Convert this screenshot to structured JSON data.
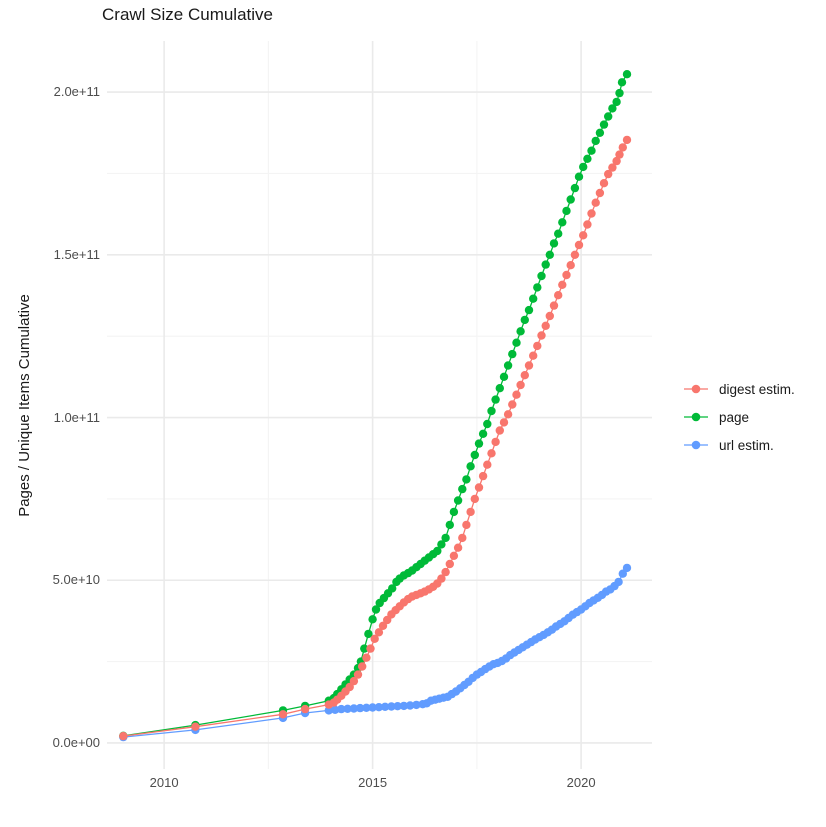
{
  "title": "Crawl Size Cumulative",
  "y_axis_title": "Pages / Unique Items Cumulative",
  "colors": {
    "digest_estim": "#F8766D",
    "page": "#00BA38",
    "url_estim": "#619CFF",
    "grid_major": "#EAEAEA",
    "grid_minor": "#F4F4F4",
    "tick_label": "#4D4D4D",
    "text": "#1A1A1A",
    "background": "#FFFFFF"
  },
  "legend": {
    "items": [
      {
        "label": "digest estim.",
        "color": "#F8766D"
      },
      {
        "label": "page",
        "color": "#00BA38"
      },
      {
        "label": "url estim.",
        "color": "#619CFF"
      }
    ]
  },
  "chart_data": {
    "type": "line",
    "title": "Crawl Size Cumulative",
    "xlabel": "",
    "ylabel": "Pages / Unique Items Cumulative",
    "grid": true,
    "legend_position": "right",
    "xlim": [
      2008.63,
      2021.7
    ],
    "ylim": [
      -8000000000.0,
      215700000000.0
    ],
    "x_ticks": [
      {
        "value": 2010,
        "label": "2010"
      },
      {
        "value": 2015,
        "label": "2015"
      },
      {
        "value": 2020,
        "label": "2020"
      }
    ],
    "x_minor_ticks": [
      2012.5,
      2017.5
    ],
    "y_ticks": [
      {
        "value": 0,
        "label": "0.0e+00"
      },
      {
        "value": 50000000000.0,
        "label": "5.0e+10"
      },
      {
        "value": 100000000000.0,
        "label": "1.0e+11"
      },
      {
        "value": 150000000000.0,
        "label": "1.5e+11"
      },
      {
        "value": 200000000000.0,
        "label": "2.0e+11"
      }
    ],
    "y_minor_ticks": [
      25000000000.0,
      75000000000.0,
      125000000000.0,
      175000000000.0
    ],
    "draw_order": [
      2,
      1,
      0
    ],
    "series": [
      {
        "name": "digest estim.",
        "color": "#F8766D",
        "points": [
          [
            2009.02,
            2100000000.0
          ],
          [
            2010.75,
            5000000000.0
          ],
          [
            2012.85,
            8800000000.0
          ],
          [
            2013.38,
            10400000000.0
          ],
          [
            2013.95,
            11800000000.0
          ],
          [
            2014.07,
            12400000000.0
          ],
          [
            2014.15,
            13300000000.0
          ],
          [
            2014.25,
            14500000000.0
          ],
          [
            2014.35,
            15800000000.0
          ],
          [
            2014.45,
            17200000000.0
          ],
          [
            2014.55,
            19000000000.0
          ],
          [
            2014.65,
            21000000000.0
          ],
          [
            2014.75,
            23500000000.0
          ],
          [
            2014.85,
            26200000000.0
          ],
          [
            2014.95,
            29000000000.0
          ],
          [
            2015.05,
            32000000000.0
          ],
          [
            2015.15,
            34000000000.0
          ],
          [
            2015.25,
            36000000000.0
          ],
          [
            2015.35,
            37800000000.0
          ],
          [
            2015.45,
            39500000000.0
          ],
          [
            2015.55,
            40800000000.0
          ],
          [
            2015.65,
            42000000000.0
          ],
          [
            2015.75,
            43200000000.0
          ],
          [
            2015.85,
            44200000000.0
          ],
          [
            2015.95,
            45000000000.0
          ],
          [
            2016.05,
            45500000000.0
          ],
          [
            2016.15,
            46000000000.0
          ],
          [
            2016.25,
            46500000000.0
          ],
          [
            2016.35,
            47200000000.0
          ],
          [
            2016.45,
            48000000000.0
          ],
          [
            2016.55,
            49000000000.0
          ],
          [
            2016.65,
            50500000000.0
          ],
          [
            2016.75,
            52500000000.0
          ],
          [
            2016.85,
            55000000000.0
          ],
          [
            2016.95,
            57500000000.0
          ],
          [
            2017.05,
            60000000000.0
          ],
          [
            2017.15,
            63000000000.0
          ],
          [
            2017.25,
            67000000000.0
          ],
          [
            2017.35,
            71000000000.0
          ],
          [
            2017.45,
            75000000000.0
          ],
          [
            2017.55,
            78500000000.0
          ],
          [
            2017.65,
            82000000000.0
          ],
          [
            2017.75,
            85500000000.0
          ],
          [
            2017.85,
            89000000000.0
          ],
          [
            2017.95,
            92500000000.0
          ],
          [
            2018.05,
            96000000000.0
          ],
          [
            2018.15,
            98500000000.0
          ],
          [
            2018.25,
            101000000000.0
          ],
          [
            2018.35,
            104000000000.0
          ],
          [
            2018.45,
            107000000000.0
          ],
          [
            2018.55,
            110000000000.0
          ],
          [
            2018.65,
            113000000000.0
          ],
          [
            2018.75,
            116000000000.0
          ],
          [
            2018.85,
            119000000000.0
          ],
          [
            2018.95,
            122000000000.0
          ],
          [
            2019.05,
            125200000000.0
          ],
          [
            2019.15,
            128200000000.0
          ],
          [
            2019.25,
            131200000000.0
          ],
          [
            2019.35,
            134400000000.0
          ],
          [
            2019.45,
            137600000000.0
          ],
          [
            2019.55,
            140800000000.0
          ],
          [
            2019.65,
            143800000000.0
          ],
          [
            2019.75,
            146800000000.0
          ],
          [
            2019.85,
            150000000000.0
          ],
          [
            2019.95,
            153000000000.0
          ],
          [
            2020.05,
            156000000000.0
          ],
          [
            2020.15,
            159300000000.0
          ],
          [
            2020.25,
            162700000000.0
          ],
          [
            2020.35,
            166000000000.0
          ],
          [
            2020.45,
            169000000000.0
          ],
          [
            2020.55,
            172000000000.0
          ],
          [
            2020.65,
            174800000000.0
          ],
          [
            2020.75,
            176800000000.0
          ],
          [
            2020.85,
            178800000000.0
          ],
          [
            2020.92,
            180800000000.0
          ],
          [
            2021.0,
            183000000000.0
          ],
          [
            2021.1,
            185300000000.0
          ]
        ]
      },
      {
        "name": "page",
        "color": "#00BA38",
        "points": [
          [
            2009.02,
            2200000000.0
          ],
          [
            2010.75,
            5500000000.0
          ],
          [
            2012.85,
            10000000000.0
          ],
          [
            2013.38,
            11400000000.0
          ],
          [
            2013.95,
            13000000000.0
          ],
          [
            2014.07,
            13800000000.0
          ],
          [
            2014.15,
            15000000000.0
          ],
          [
            2014.25,
            16500000000.0
          ],
          [
            2014.35,
            18000000000.0
          ],
          [
            2014.45,
            19500000000.0
          ],
          [
            2014.55,
            21000000000.0
          ],
          [
            2014.65,
            23000000000.0
          ],
          [
            2014.72,
            25000000000.0
          ],
          [
            2014.8,
            29000000000.0
          ],
          [
            2014.9,
            33500000000.0
          ],
          [
            2015.0,
            38000000000.0
          ],
          [
            2015.08,
            41000000000.0
          ],
          [
            2015.17,
            43000000000.0
          ],
          [
            2015.27,
            44500000000.0
          ],
          [
            2015.37,
            46000000000.0
          ],
          [
            2015.47,
            47500000000.0
          ],
          [
            2015.57,
            49500000000.0
          ],
          [
            2015.65,
            50500000000.0
          ],
          [
            2015.75,
            51500000000.0
          ],
          [
            2015.85,
            52200000000.0
          ],
          [
            2015.95,
            53000000000.0
          ],
          [
            2016.05,
            54000000000.0
          ],
          [
            2016.15,
            55000000000.0
          ],
          [
            2016.25,
            56000000000.0
          ],
          [
            2016.35,
            57000000000.0
          ],
          [
            2016.45,
            58000000000.0
          ],
          [
            2016.55,
            59000000000.0
          ],
          [
            2016.65,
            61000000000.0
          ],
          [
            2016.75,
            63000000000.0
          ],
          [
            2016.85,
            67000000000.0
          ],
          [
            2016.95,
            71000000000.0
          ],
          [
            2017.05,
            74500000000.0
          ],
          [
            2017.15,
            78000000000.0
          ],
          [
            2017.25,
            81000000000.0
          ],
          [
            2017.35,
            85000000000.0
          ],
          [
            2017.45,
            88500000000.0
          ],
          [
            2017.55,
            92000000000.0
          ],
          [
            2017.65,
            95000000000.0
          ],
          [
            2017.75,
            98000000000.0
          ],
          [
            2017.85,
            102000000000.0
          ],
          [
            2017.95,
            105500000000.0
          ],
          [
            2018.05,
            109000000000.0
          ],
          [
            2018.15,
            112500000000.0
          ],
          [
            2018.25,
            116000000000.0
          ],
          [
            2018.35,
            119500000000.0
          ],
          [
            2018.45,
            123000000000.0
          ],
          [
            2018.55,
            126500000000.0
          ],
          [
            2018.65,
            130000000000.0
          ],
          [
            2018.75,
            133000000000.0
          ],
          [
            2018.85,
            136500000000.0
          ],
          [
            2018.95,
            140000000000.0
          ],
          [
            2019.05,
            143500000000.0
          ],
          [
            2019.15,
            147000000000.0
          ],
          [
            2019.25,
            150000000000.0
          ],
          [
            2019.35,
            153500000000.0
          ],
          [
            2019.45,
            156500000000.0
          ],
          [
            2019.55,
            160000000000.0
          ],
          [
            2019.65,
            163500000000.0
          ],
          [
            2019.75,
            167000000000.0
          ],
          [
            2019.85,
            170500000000.0
          ],
          [
            2019.95,
            174000000000.0
          ],
          [
            2020.05,
            177000000000.0
          ],
          [
            2020.15,
            179500000000.0
          ],
          [
            2020.25,
            182000000000.0
          ],
          [
            2020.35,
            185000000000.0
          ],
          [
            2020.45,
            187500000000.0
          ],
          [
            2020.55,
            190000000000.0
          ],
          [
            2020.65,
            192500000000.0
          ],
          [
            2020.75,
            195000000000.0
          ],
          [
            2020.85,
            197000000000.0
          ],
          [
            2020.92,
            199700000000.0
          ],
          [
            2020.98,
            203000000000.0
          ],
          [
            2021.1,
            205500000000.0
          ]
        ]
      },
      {
        "name": "url estim.",
        "color": "#619CFF",
        "points": [
          [
            2009.02,
            1800000000.0
          ],
          [
            2010.75,
            4000000000.0
          ],
          [
            2012.85,
            7700000000.0
          ],
          [
            2013.38,
            9200000000.0
          ],
          [
            2013.95,
            10000000000.0
          ],
          [
            2014.1,
            10200000000.0
          ],
          [
            2014.25,
            10400000000.0
          ],
          [
            2014.4,
            10500000000.0
          ],
          [
            2014.55,
            10600000000.0
          ],
          [
            2014.7,
            10700000000.0
          ],
          [
            2014.85,
            10800000000.0
          ],
          [
            2015.0,
            10900000000.0
          ],
          [
            2015.15,
            11000000000.0
          ],
          [
            2015.3,
            11100000000.0
          ],
          [
            2015.45,
            11200000000.0
          ],
          [
            2015.6,
            11300000000.0
          ],
          [
            2015.75,
            11400000000.0
          ],
          [
            2015.9,
            11500000000.0
          ],
          [
            2016.05,
            11700000000.0
          ],
          [
            2016.2,
            11900000000.0
          ],
          [
            2016.3,
            12200000000.0
          ],
          [
            2016.4,
            13000000000.0
          ],
          [
            2016.5,
            13300000000.0
          ],
          [
            2016.6,
            13600000000.0
          ],
          [
            2016.7,
            13900000000.0
          ],
          [
            2016.8,
            14200000000.0
          ],
          [
            2016.9,
            15000000000.0
          ],
          [
            2017.0,
            15800000000.0
          ],
          [
            2017.1,
            16800000000.0
          ],
          [
            2017.2,
            17800000000.0
          ],
          [
            2017.3,
            18800000000.0
          ],
          [
            2017.4,
            20000000000.0
          ],
          [
            2017.5,
            21000000000.0
          ],
          [
            2017.6,
            21800000000.0
          ],
          [
            2017.7,
            22700000000.0
          ],
          [
            2017.8,
            23500000000.0
          ],
          [
            2017.9,
            24200000000.0
          ],
          [
            2018.0,
            24600000000.0
          ],
          [
            2018.1,
            25200000000.0
          ],
          [
            2018.2,
            26000000000.0
          ],
          [
            2018.3,
            27000000000.0
          ],
          [
            2018.4,
            27800000000.0
          ],
          [
            2018.5,
            28600000000.0
          ],
          [
            2018.6,
            29400000000.0
          ],
          [
            2018.7,
            30200000000.0
          ],
          [
            2018.8,
            31000000000.0
          ],
          [
            2018.9,
            31800000000.0
          ],
          [
            2019.0,
            32500000000.0
          ],
          [
            2019.1,
            33200000000.0
          ],
          [
            2019.2,
            34000000000.0
          ],
          [
            2019.3,
            34800000000.0
          ],
          [
            2019.4,
            35800000000.0
          ],
          [
            2019.5,
            36600000000.0
          ],
          [
            2019.6,
            37400000000.0
          ],
          [
            2019.7,
            38400000000.0
          ],
          [
            2019.8,
            39400000000.0
          ],
          [
            2019.9,
            40200000000.0
          ],
          [
            2020.0,
            41000000000.0
          ],
          [
            2020.1,
            42000000000.0
          ],
          [
            2020.2,
            43000000000.0
          ],
          [
            2020.3,
            43800000000.0
          ],
          [
            2020.4,
            44600000000.0
          ],
          [
            2020.5,
            45500000000.0
          ],
          [
            2020.6,
            46500000000.0
          ],
          [
            2020.7,
            47200000000.0
          ],
          [
            2020.8,
            48200000000.0
          ],
          [
            2020.9,
            49500000000.0
          ],
          [
            2021.0,
            52000000000.0
          ],
          [
            2021.1,
            53800000000.0
          ]
        ]
      }
    ]
  }
}
